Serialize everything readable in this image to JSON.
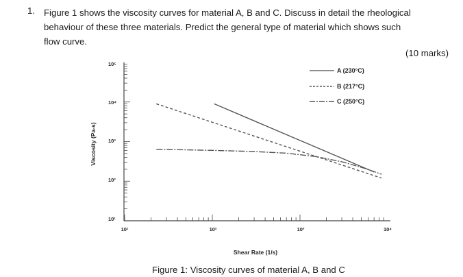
{
  "question": {
    "number": "1.",
    "lines": [
      "Figure 1 shows the viscosity curves for material A, B and C. Discuss in detail the rheological",
      "behaviour of these three materials. Predict the general type of material which shows such",
      "flow curve."
    ],
    "marks": "(10 marks)"
  },
  "caption": "Figure 1: Viscosity curves of material A, B and C",
  "chart_data": {
    "type": "line",
    "title": "",
    "xlabel": "Shear Rate (1/s)",
    "ylabel": "Viscosity (Pa-s)",
    "x_scale": "log",
    "y_scale": "log",
    "xlim": [
      10,
      10000
    ],
    "ylim": [
      10,
      100000
    ],
    "x_tick_labels": [
      "10¹",
      "10²",
      "10³",
      "10⁴"
    ],
    "y_tick_labels": [
      "10⁵",
      "10⁴",
      "10³",
      "10²",
      "10¹"
    ],
    "legend_position": "top-right",
    "series": [
      {
        "name": "A (230°C)",
        "style": "solid",
        "color": "#555555",
        "x": [
          105,
          7000
        ],
        "y": [
          9000,
          170
        ]
      },
      {
        "name": "B (217°C)",
        "style": "dashed",
        "color": "#555555",
        "x": [
          23,
          8500
        ],
        "y": [
          9000,
          120
        ]
      },
      {
        "name": "C (250°C)",
        "style": "dash-dot",
        "color": "#555555",
        "x": [
          23,
          100,
          300,
          700,
          1500,
          3000,
          5500,
          8500
        ],
        "y": [
          640,
          600,
          560,
          510,
          420,
          310,
          210,
          150
        ]
      }
    ]
  }
}
